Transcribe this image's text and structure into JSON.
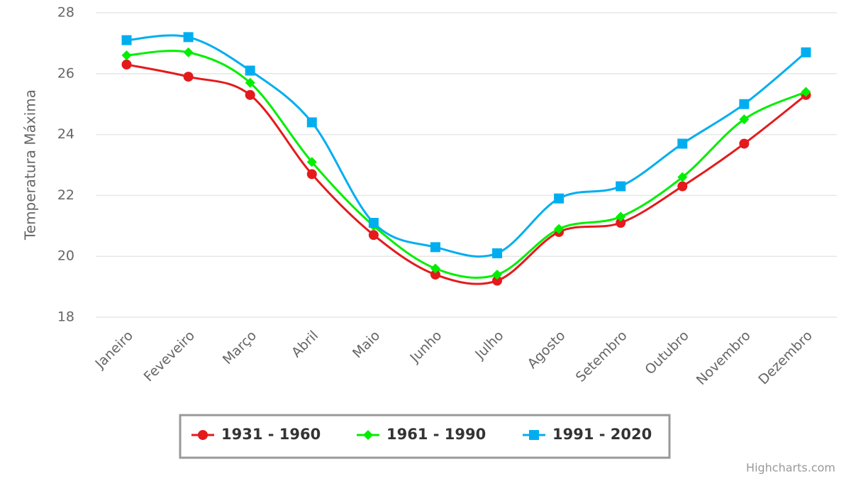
{
  "chart_data": {
    "type": "spline",
    "y_axis_label": "Temperatura Máxima",
    "categories": [
      "Janeiro",
      "Feveveiro",
      "Março",
      "Abril",
      "Maio",
      "Junho",
      "Julho",
      "Agosto",
      "Setembro",
      "Outubro",
      "Novembro",
      "Dezembro"
    ],
    "series": [
      {
        "name": "1931 - 1960",
        "color": "#e41a1c",
        "marker": "circle",
        "values": [
          26.3,
          25.9,
          25.3,
          22.7,
          20.7,
          19.4,
          19.2,
          20.8,
          21.1,
          22.3,
          23.7,
          25.3
        ]
      },
      {
        "name": "1961 - 1990",
        "color": "#00ee00",
        "marker": "diamond",
        "values": [
          26.6,
          26.7,
          25.7,
          23.1,
          21.0,
          19.6,
          19.4,
          20.9,
          21.3,
          22.6,
          24.5,
          25.4
        ]
      },
      {
        "name": "1991 - 2020",
        "color": "#00aeef",
        "marker": "square",
        "values": [
          27.1,
          27.2,
          26.1,
          24.4,
          21.1,
          20.3,
          20.1,
          21.9,
          22.3,
          23.7,
          25.0,
          26.7
        ]
      }
    ],
    "ylim": [
      18,
      28
    ],
    "yticks": [
      18,
      20,
      22,
      24,
      26,
      28
    ],
    "grid": true,
    "legend": "bottom",
    "credit": "Highcharts.com"
  }
}
